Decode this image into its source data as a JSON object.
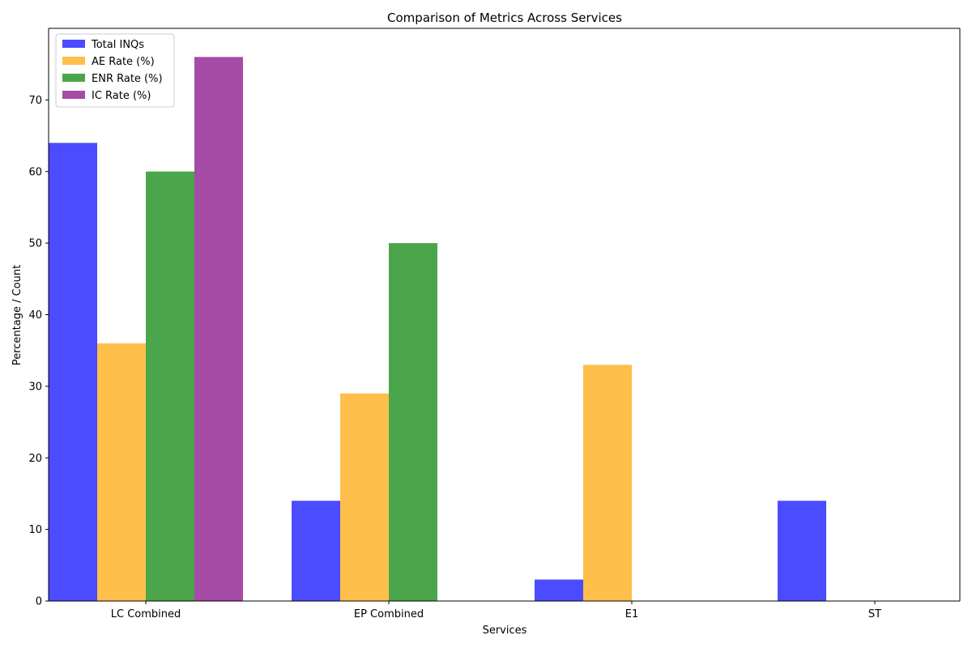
{
  "chart_data": {
    "type": "bar",
    "title": "Comparison of Metrics Across Services",
    "xlabel": "Services",
    "ylabel": "Percentage / Count",
    "categories": [
      "LC Combined",
      "EP Combined",
      "E1",
      "ST"
    ],
    "series": [
      {
        "name": "Total INQs",
        "color": "#4b4bff",
        "values": [
          64,
          14,
          3,
          14
        ]
      },
      {
        "name": "AE Rate (%)",
        "color": "#ffbf4b",
        "values": [
          36,
          29,
          33,
          0
        ]
      },
      {
        "name": "ENR Rate (%)",
        "color": "#4ba64b",
        "values": [
          60,
          50,
          0,
          0
        ]
      },
      {
        "name": "IC Rate (%)",
        "color": "#a64ba6",
        "values": [
          76,
          0,
          0,
          0
        ]
      }
    ],
    "ylim": [
      0,
      80
    ],
    "yticks": [
      0,
      10,
      20,
      30,
      40,
      50,
      60,
      70
    ],
    "grid": false,
    "legend_position": "top-left"
  }
}
